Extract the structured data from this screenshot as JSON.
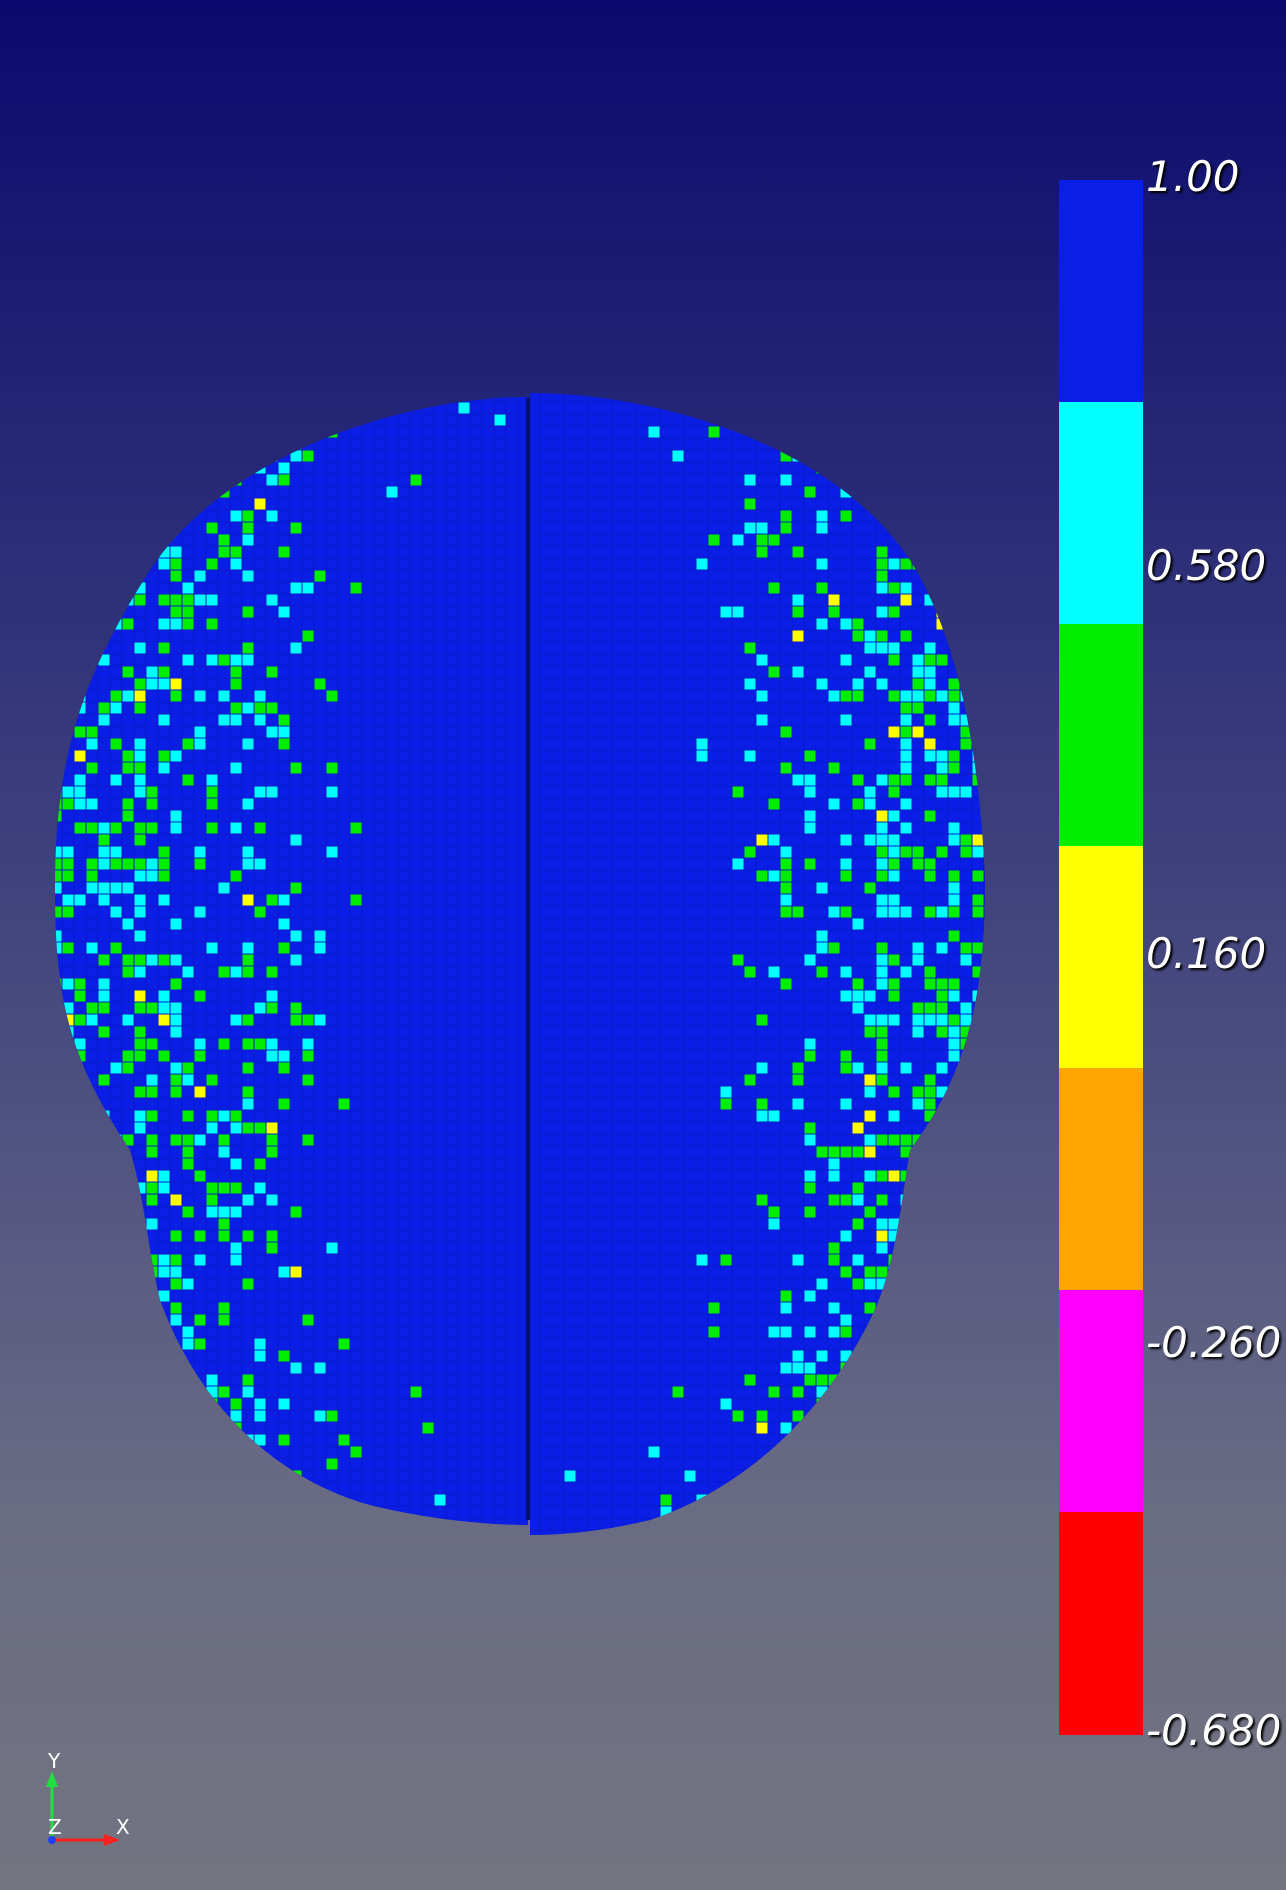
{
  "colors": {
    "mesh_base": "#0a1ee6",
    "cyan": "#00ffff",
    "green": "#00ee00",
    "yellow": "#ffff00",
    "orange": "#ffa500",
    "magenta": "#ff00ff",
    "red": "#ff0000",
    "axis_x": "#ff2020",
    "axis_y": "#20e040",
    "axis_z": "#2040ff"
  },
  "scalebar": {
    "segments": [
      "#0a1ee6",
      "#00ffff",
      "#00ee00",
      "#ffff00",
      "#ffa500",
      "#ff00ff",
      "#ff0000"
    ],
    "labels": [
      "1.00",
      "0.580",
      "0.160",
      "-0.260",
      "-0.680"
    ]
  },
  "axes": {
    "x_label": "X",
    "y_label": "Y",
    "z_label": "Z"
  }
}
